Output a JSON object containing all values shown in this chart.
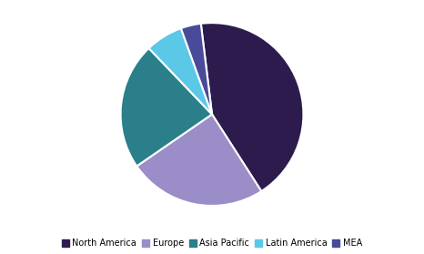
{
  "labels": [
    "North America",
    "Europe",
    "Asia Pacific",
    "Latin America",
    "MEA"
  ],
  "values": [
    42.0,
    24.0,
    22.0,
    6.5,
    3.5
  ],
  "colors": [
    "#2d1b4e",
    "#9b8dc8",
    "#2a7f8a",
    "#5bc8e8",
    "#4a4a9a"
  ],
  "startangle": 97,
  "counterclock": false,
  "legend_labels": [
    "North America",
    "Europe",
    "Asia Pacific",
    "Latin America",
    "MEA"
  ],
  "legend_colors": [
    "#2d1b4e",
    "#9b8dc8",
    "#2a7f8a",
    "#5bc8e8",
    "#4a4a9a"
  ],
  "background_color": "#ffffff",
  "edge_color": "#ffffff",
  "edge_linewidth": 1.5
}
